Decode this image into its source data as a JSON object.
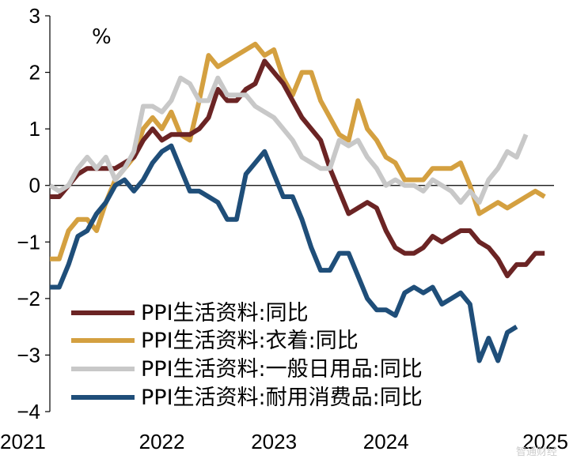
{
  "chart_data": {
    "type": "line",
    "unit_label": "%",
    "ylim": [
      -4,
      3
    ],
    "y_ticks": [
      "3",
      "2",
      "1",
      "0",
      "−1",
      "−2",
      "−3",
      "−4"
    ],
    "y_tick_values": [
      3,
      2,
      1,
      0,
      -1,
      -2,
      -3,
      -4
    ],
    "x_tick_labels": [
      "2021",
      "2022",
      "2023",
      "2024",
      "2025"
    ],
    "x_tick_months": [
      0,
      12,
      24,
      36,
      48
    ],
    "grid": false,
    "legend_position": "bottom-left",
    "series": [
      {
        "name": "PPI生活资料:同比",
        "color": "#6b2424",
        "values": [
          -0.2,
          -0.2,
          0.0,
          0.2,
          0.3,
          0.3,
          0.3,
          0.3,
          0.4,
          0.5,
          0.8,
          1.0,
          0.8,
          0.9,
          0.9,
          0.9,
          1.0,
          1.2,
          1.7,
          1.5,
          1.5,
          1.7,
          1.8,
          2.2,
          2.0,
          1.8,
          1.5,
          1.2,
          1.0,
          0.8,
          0.3,
          -0.1,
          -0.5,
          -0.4,
          -0.3,
          -0.4,
          -0.8,
          -1.1,
          -1.2,
          -1.2,
          -1.1,
          -0.9,
          -1.0,
          -0.9,
          -0.8,
          -0.8,
          -1.0,
          -1.1,
          -1.3,
          -1.6,
          -1.4,
          -1.4,
          -1.2,
          -1.2
        ]
      },
      {
        "name": "PPI生活资料:衣着:同比",
        "color": "#d4a040",
        "values": [
          -1.3,
          -1.3,
          -0.8,
          -0.6,
          -0.6,
          -0.8,
          -0.3,
          0.1,
          0.3,
          0.5,
          1.0,
          1.2,
          1.0,
          1.3,
          0.9,
          0.8,
          1.5,
          2.3,
          2.1,
          2.2,
          2.3,
          2.4,
          2.5,
          2.3,
          2.4,
          1.9,
          1.6,
          2.0,
          2.0,
          1.5,
          1.2,
          0.9,
          0.8,
          1.5,
          1.0,
          0.8,
          0.5,
          0.4,
          0.1,
          0.1,
          0.1,
          0.3,
          0.3,
          0.3,
          0.4,
          0.0,
          -0.5,
          -0.4,
          -0.3,
          -0.4,
          -0.3,
          -0.2,
          -0.1,
          -0.2
        ]
      },
      {
        "name": "PPI生活资料:一般日用品:同比",
        "color": "#c8c8c8",
        "values": [
          0.0,
          -0.1,
          0.0,
          0.3,
          0.5,
          0.3,
          0.5,
          0.1,
          0.3,
          0.6,
          1.4,
          1.4,
          1.3,
          1.5,
          1.9,
          1.8,
          1.5,
          1.5,
          1.9,
          1.6,
          1.6,
          1.6,
          1.4,
          1.3,
          1.2,
          1.0,
          0.8,
          0.5,
          0.4,
          0.3,
          0.3,
          0.8,
          0.7,
          0.8,
          0.5,
          0.3,
          0.0,
          0.1,
          0.0,
          0.0,
          -0.1,
          0.1,
          0.0,
          -0.1,
          -0.3,
          -0.1,
          -0.3,
          0.1,
          0.3,
          0.6,
          0.5,
          0.9
        ]
      },
      {
        "name": "PPI生活资料:耐用消费品:同比",
        "color": "#1f4e79",
        "values": [
          -1.8,
          -1.8,
          -1.4,
          -0.9,
          -0.8,
          -0.5,
          -0.3,
          0.0,
          0.1,
          -0.1,
          0.1,
          0.4,
          0.6,
          0.7,
          0.3,
          -0.1,
          -0.1,
          -0.2,
          -0.3,
          -0.6,
          -0.6,
          0.2,
          0.4,
          0.6,
          0.2,
          -0.2,
          -0.2,
          -0.6,
          -1.1,
          -1.5,
          -1.5,
          -1.2,
          -1.2,
          -1.6,
          -2.0,
          -2.2,
          -2.2,
          -2.3,
          -1.9,
          -1.8,
          -1.9,
          -1.8,
          -2.1,
          -2.0,
          -1.9,
          -2.1,
          -3.1,
          -2.7,
          -3.1,
          -2.6,
          -2.5
        ]
      }
    ]
  },
  "watermark": "智通财经"
}
